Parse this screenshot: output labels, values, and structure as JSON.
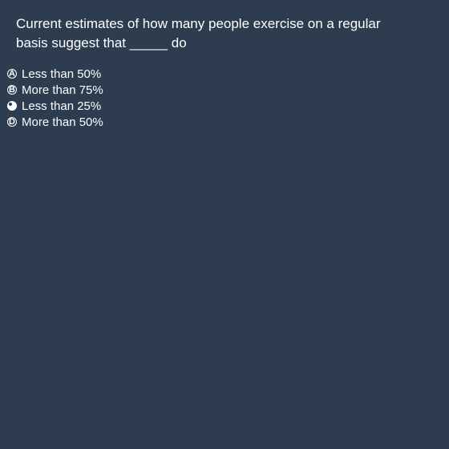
{
  "question": {
    "text": "Current estimates of how many people exercise on a regular basis suggest that _____ do"
  },
  "options": [
    {
      "letter": "A",
      "label": "Less than 50%",
      "selected": false
    },
    {
      "letter": "B",
      "label": "More than 75%",
      "selected": false
    },
    {
      "letter": "C",
      "label": "Less than 25%",
      "selected": true
    },
    {
      "letter": "D",
      "label": "More than 50%",
      "selected": false
    }
  ]
}
